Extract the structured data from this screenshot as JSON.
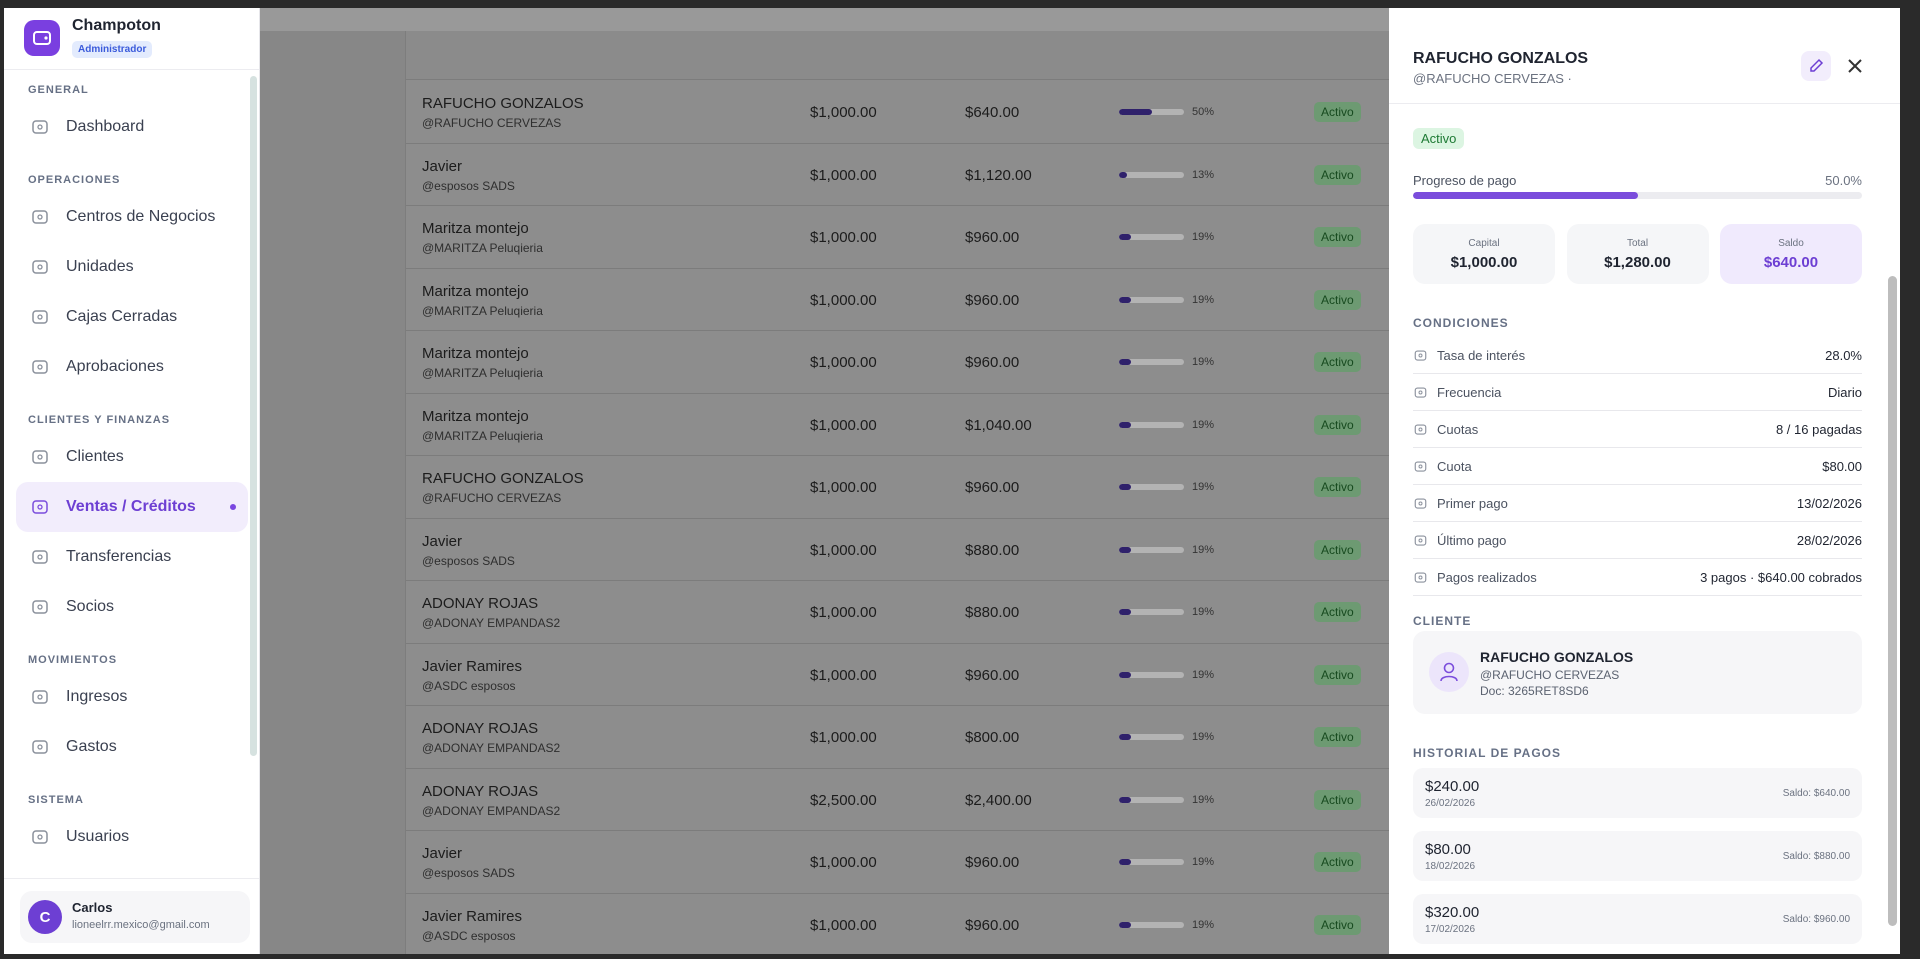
{
  "sidebar": {
    "brand": "Champoton",
    "role": "Administrador",
    "sections": [
      {
        "label": "GENERAL",
        "items": [
          {
            "label": "Dashboard"
          }
        ]
      },
      {
        "label": "OPERACIONES",
        "items": [
          {
            "label": "Centros de Negocios"
          },
          {
            "label": "Unidades"
          },
          {
            "label": "Cajas Cerradas"
          },
          {
            "label": "Aprobaciones"
          }
        ]
      },
      {
        "label": "CLIENTES Y FINANZAS",
        "items": [
          {
            "label": "Clientes"
          },
          {
            "label": "Ventas / Créditos",
            "active": true
          },
          {
            "label": "Transferencias"
          },
          {
            "label": "Socios"
          }
        ]
      },
      {
        "label": "MOVIMIENTOS",
        "items": [
          {
            "label": "Ingresos"
          },
          {
            "label": "Gastos"
          }
        ]
      },
      {
        "label": "SISTEMA",
        "items": [
          {
            "label": "Usuarios"
          }
        ]
      }
    ],
    "user": {
      "initial": "C",
      "name": "Carlos",
      "email": "lioneelrr.mexico@gmail.com"
    }
  },
  "table": {
    "rows": [
      {
        "name": "RAFUCHO GONZALOS",
        "handle": "@RAFUCHO CERVEZAS",
        "capital": "$1,000.00",
        "total": "$640.00",
        "progress": 50,
        "progress_label": "50%",
        "status": "Activo"
      },
      {
        "name": "Javier",
        "handle": "@esposos SADS",
        "capital": "$1,000.00",
        "total": "$1,120.00",
        "progress": 13,
        "progress_label": "13%",
        "status": "Activo"
      },
      {
        "name": "Maritza montejo",
        "handle": "@MARITZA Peluqieria",
        "capital": "$1,000.00",
        "total": "$960.00",
        "progress": 19,
        "progress_label": "19%",
        "status": "Activo"
      },
      {
        "name": "Maritza montejo",
        "handle": "@MARITZA Peluqieria",
        "capital": "$1,000.00",
        "total": "$960.00",
        "progress": 19,
        "progress_label": "19%",
        "status": "Activo"
      },
      {
        "name": "Maritza montejo",
        "handle": "@MARITZA Peluqieria",
        "capital": "$1,000.00",
        "total": "$960.00",
        "progress": 19,
        "progress_label": "19%",
        "status": "Activo"
      },
      {
        "name": "Maritza montejo",
        "handle": "@MARITZA Peluqieria",
        "capital": "$1,000.00",
        "total": "$1,040.00",
        "progress": 19,
        "progress_label": "19%",
        "status": "Activo"
      },
      {
        "name": "RAFUCHO GONZALOS",
        "handle": "@RAFUCHO CERVEZAS",
        "capital": "$1,000.00",
        "total": "$960.00",
        "progress": 19,
        "progress_label": "19%",
        "status": "Activo"
      },
      {
        "name": "Javier",
        "handle": "@esposos SADS",
        "capital": "$1,000.00",
        "total": "$880.00",
        "progress": 19,
        "progress_label": "19%",
        "status": "Activo"
      },
      {
        "name": "ADONAY ROJAS",
        "handle": "@ADONAY EMPANDAS2",
        "capital": "$1,000.00",
        "total": "$880.00",
        "progress": 19,
        "progress_label": "19%",
        "status": "Activo"
      },
      {
        "name": "Javier Ramires",
        "handle": "@ASDC esposos",
        "capital": "$1,000.00",
        "total": "$960.00",
        "progress": 19,
        "progress_label": "19%",
        "status": "Activo"
      },
      {
        "name": "ADONAY ROJAS",
        "handle": "@ADONAY EMPANDAS2",
        "capital": "$1,000.00",
        "total": "$800.00",
        "progress": 19,
        "progress_label": "19%",
        "status": "Activo"
      },
      {
        "name": "ADONAY ROJAS",
        "handle": "@ADONAY EMPANDAS2",
        "capital": "$2,500.00",
        "total": "$2,400.00",
        "progress": 19,
        "progress_label": "19%",
        "status": "Activo"
      },
      {
        "name": "Javier",
        "handle": "@esposos SADS",
        "capital": "$1,000.00",
        "total": "$960.00",
        "progress": 19,
        "progress_label": "19%",
        "status": "Activo"
      },
      {
        "name": "Javier Ramires",
        "handle": "@ASDC esposos",
        "capital": "$1,000.00",
        "total": "$960.00",
        "progress": 19,
        "progress_label": "19%",
        "status": "Activo"
      }
    ]
  },
  "drawer": {
    "title": "RAFUCHO GONZALOS",
    "subtitle": "@RAFUCHO CERVEZAS ·",
    "status": "Activo",
    "progress_label": "Progreso de pago",
    "progress": 50,
    "progress_value": "50.0%",
    "stats": [
      {
        "label": "Capital",
        "value": "$1,000.00"
      },
      {
        "label": "Total",
        "value": "$1,280.00"
      },
      {
        "label": "Saldo",
        "value": "$640.00"
      }
    ],
    "conditions_title": "CONDICIONES",
    "conditions": [
      {
        "label": "Tasa de interés",
        "value": "28.0%"
      },
      {
        "label": "Frecuencia",
        "value": "Diario"
      },
      {
        "label": "Cuotas",
        "value": "8 / 16 pagadas"
      },
      {
        "label": "Cuota",
        "value": "$80.00"
      },
      {
        "label": "Primer pago",
        "value": "13/02/2026"
      },
      {
        "label": "Último pago",
        "value": "28/02/2026"
      },
      {
        "label": "Pagos realizados",
        "value": "3 pagos · $640.00 cobrados"
      }
    ],
    "client_title": "CLIENTE",
    "client": {
      "name": "RAFUCHO GONZALOS",
      "handle": "@RAFUCHO CERVEZAS",
      "doc": "Doc: 3265RET8SD6"
    },
    "history_title": "HISTORIAL DE PAGOS",
    "history": [
      {
        "amount": "$240.00",
        "date": "26/02/2026",
        "balance": "Saldo: $640.00"
      },
      {
        "amount": "$80.00",
        "date": "18/02/2026",
        "balance": "Saldo: $880.00"
      },
      {
        "amount": "$320.00",
        "date": "17/02/2026",
        "balance": "Saldo: $960.00"
      }
    ]
  }
}
